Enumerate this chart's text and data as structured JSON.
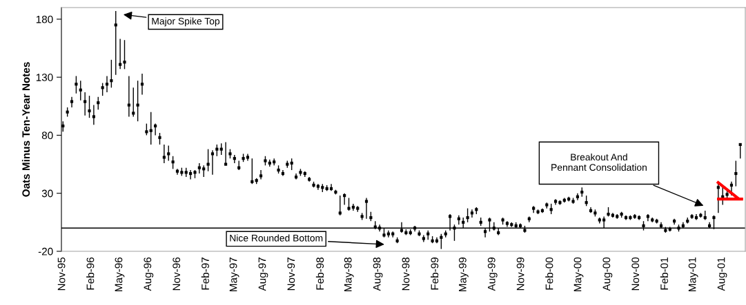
{
  "chart_data": {
    "type": "scatter",
    "ylabel": "Oats Minus Ten-Year Notes",
    "xlim": [
      "1995-10-29",
      "2001-10-14"
    ],
    "ylim": [
      -20,
      190
    ],
    "yticks": [
      -20,
      30,
      80,
      130,
      180
    ],
    "xticks": [
      {
        "value": "1995-11-01",
        "label": "Nov-95"
      },
      {
        "value": "1996-02-01",
        "label": "Feb-96"
      },
      {
        "value": "1996-05-01",
        "label": "May-96"
      },
      {
        "value": "1996-08-01",
        "label": "Aug-96"
      },
      {
        "value": "1996-11-01",
        "label": "Nov-96"
      },
      {
        "value": "1997-02-01",
        "label": "Feb-97"
      },
      {
        "value": "1997-05-01",
        "label": "May-97"
      },
      {
        "value": "1997-08-01",
        "label": "Aug-97"
      },
      {
        "value": "1997-11-01",
        "label": "Nov-97"
      },
      {
        "value": "1998-02-01",
        "label": "Feb-98"
      },
      {
        "value": "1998-05-01",
        "label": "May-98"
      },
      {
        "value": "1998-08-01",
        "label": "Aug-98"
      },
      {
        "value": "1998-11-01",
        "label": "Nov-98"
      },
      {
        "value": "1999-02-01",
        "label": "Feb-99"
      },
      {
        "value": "1999-05-01",
        "label": "May-99"
      },
      {
        "value": "1999-08-01",
        "label": "Aug-99"
      },
      {
        "value": "1999-11-01",
        "label": "Nov-99"
      },
      {
        "value": "2000-02-01",
        "label": "Feb-00"
      },
      {
        "value": "2000-05-01",
        "label": "May-00"
      },
      {
        "value": "2000-08-01",
        "label": "Aug-00"
      },
      {
        "value": "2000-11-01",
        "label": "Nov-00"
      },
      {
        "value": "2001-02-01",
        "label": "Feb-01"
      },
      {
        "value": "2001-05-01",
        "label": "May-01"
      },
      {
        "value": "2001-08-01",
        "label": "Aug-01"
      }
    ],
    "grid": false,
    "legend": false,
    "ref_lines": [
      {
        "axis": "y",
        "value": 0,
        "color": "#000000"
      }
    ],
    "annotations": [
      "Major Spike Top",
      "Nice Rounded Bottom",
      "Breakout And\nPennant Consolidation"
    ],
    "series": [
      {
        "marker": "square",
        "color": "#000000",
        "x": [
          "1995-11-03",
          "1995-11-17",
          "1995-12-01",
          "1995-12-15",
          "1995-12-29",
          "1996-01-12",
          "1996-01-26",
          "1996-02-09",
          "1996-02-23",
          "1996-03-08",
          "1996-03-22",
          "1996-04-05",
          "1996-04-19",
          "1996-05-03",
          "1996-05-17",
          "1996-05-31",
          "1996-06-14",
          "1996-06-28",
          "1996-07-12",
          "1996-07-26",
          "1996-08-09",
          "1996-08-23",
          "1996-09-06",
          "1996-09-20",
          "1996-10-04",
          "1996-10-18",
          "1996-11-01",
          "1996-11-15",
          "1996-11-29",
          "1996-12-13",
          "1996-12-27",
          "1997-01-10",
          "1997-01-24",
          "1997-02-07",
          "1997-02-21",
          "1997-03-07",
          "1997-03-21",
          "1997-04-04",
          "1997-04-18",
          "1997-05-02",
          "1997-05-16",
          "1997-05-30",
          "1997-06-13",
          "1997-06-27",
          "1997-07-11",
          "1997-07-25",
          "1997-08-08",
          "1997-08-22",
          "1997-09-05",
          "1997-09-19",
          "1997-10-03",
          "1997-10-17",
          "1997-10-31",
          "1997-11-14",
          "1997-11-28",
          "1997-12-12",
          "1997-12-26",
          "1998-01-09",
          "1998-01-23",
          "1998-02-06",
          "1998-02-20",
          "1998-03-06",
          "1998-03-20",
          "1998-04-03",
          "1998-04-17",
          "1998-05-01",
          "1998-05-15",
          "1998-05-29",
          "1998-06-12",
          "1998-06-26",
          "1998-07-10",
          "1998-07-24",
          "1998-08-07",
          "1998-08-21",
          "1998-09-04",
          "1998-09-18",
          "1998-10-02",
          "1998-10-16",
          "1998-10-30",
          "1998-11-13",
          "1998-11-27",
          "1998-12-11",
          "1998-12-25",
          "1999-01-08",
          "1999-01-22",
          "1999-02-05",
          "1999-02-19",
          "1999-03-05",
          "1999-03-19",
          "1999-04-02",
          "1999-04-16",
          "1999-04-30",
          "1999-05-14",
          "1999-05-28",
          "1999-06-11",
          "1999-06-25",
          "1999-07-09",
          "1999-07-23",
          "1999-08-06",
          "1999-08-20",
          "1999-09-03",
          "1999-09-17",
          "1999-10-01",
          "1999-10-15",
          "1999-10-29",
          "1999-11-12",
          "1999-11-26",
          "1999-12-10",
          "1999-12-24",
          "2000-01-07",
          "2000-01-21",
          "2000-02-04",
          "2000-02-18",
          "2000-03-03",
          "2000-03-17",
          "2000-03-31",
          "2000-04-14",
          "2000-04-28",
          "2000-05-12",
          "2000-05-26",
          "2000-06-09",
          "2000-06-23",
          "2000-07-07",
          "2000-07-21",
          "2000-08-04",
          "2000-08-18",
          "2000-09-01",
          "2000-09-15",
          "2000-09-29",
          "2000-10-13",
          "2000-10-27",
          "2000-11-10",
          "2000-11-24",
          "2000-12-08",
          "2000-12-22",
          "2001-01-05",
          "2001-01-19",
          "2001-02-02",
          "2001-02-16",
          "2001-03-02",
          "2001-03-16",
          "2001-03-30",
          "2001-04-13",
          "2001-04-27",
          "2001-05-11",
          "2001-05-25",
          "2001-06-08",
          "2001-06-22",
          "2001-07-06",
          "2001-07-20",
          "2001-08-03",
          "2001-08-17",
          "2001-08-31",
          "2001-09-14",
          "2001-09-28"
        ],
        "values": [
          88,
          100,
          109,
          124,
          119,
          109,
          101,
          96,
          108,
          121,
          124,
          127,
          175,
          141,
          143,
          106,
          99,
          106,
          124,
          83,
          84,
          88,
          78,
          61,
          64,
          57,
          49,
          48,
          48,
          47,
          48,
          52,
          51,
          55,
          64,
          68,
          68,
          55,
          64,
          60,
          52,
          60,
          61,
          40,
          41,
          45,
          58,
          56,
          57,
          50,
          47,
          55,
          56,
          44,
          48,
          47,
          42,
          37,
          36,
          35,
          34,
          34,
          31,
          13,
          28,
          17,
          18,
          17,
          10,
          23,
          9,
          1,
          0,
          -6,
          -5,
          -5,
          -11,
          -2,
          -4,
          -4,
          0,
          -5,
          -9,
          -5,
          -11,
          -11,
          -8,
          -5,
          10,
          0,
          8,
          5,
          9,
          13,
          16,
          5,
          -3,
          7,
          0,
          -4,
          7,
          4,
          3,
          2,
          2,
          -2,
          8,
          17,
          14,
          15,
          20,
          16,
          23,
          22,
          24,
          25,
          23,
          27,
          31,
          22,
          15,
          13,
          7,
          7,
          12,
          11,
          10,
          12,
          9,
          9,
          10,
          9,
          2,
          10,
          7,
          6,
          2,
          -2,
          -1,
          6,
          0,
          2,
          6,
          10,
          9,
          11,
          9,
          2,
          9,
          35,
          27,
          29,
          37,
          47,
          72
        ],
        "errors": [
          [
            83,
            92
          ],
          [
            96,
            104
          ],
          [
            104,
            113
          ],
          [
            116,
            131
          ],
          [
            110,
            127
          ],
          [
            97,
            117
          ],
          [
            95,
            114
          ],
          [
            89,
            106
          ],
          [
            102,
            113
          ],
          [
            114,
            125
          ],
          [
            117,
            131
          ],
          [
            121,
            145
          ],
          [
            132,
            187
          ],
          [
            137,
            163
          ],
          [
            137,
            162
          ],
          [
            96,
            131
          ],
          [
            96,
            121
          ],
          [
            92,
            127
          ],
          [
            115,
            133
          ],
          [
            80,
            90
          ],
          [
            72,
            100
          ],
          [
            80,
            90
          ],
          [
            72,
            82
          ],
          [
            56,
            72
          ],
          [
            58,
            71
          ],
          [
            51,
            62
          ],
          [
            46,
            51
          ],
          [
            45,
            52
          ],
          [
            44,
            52
          ],
          [
            42,
            50
          ],
          [
            43,
            50
          ],
          [
            47,
            56
          ],
          [
            44,
            54
          ],
          [
            49,
            68
          ],
          [
            46,
            67
          ],
          [
            62,
            72
          ],
          [
            63,
            73
          ],
          [
            54,
            74
          ],
          [
            60,
            68
          ],
          [
            56,
            63
          ],
          [
            50,
            58
          ],
          [
            57,
            64
          ],
          [
            58,
            64
          ],
          [
            38,
            60
          ],
          [
            38,
            43
          ],
          [
            42,
            50
          ],
          [
            54,
            62
          ],
          [
            53,
            59
          ],
          [
            54,
            60
          ],
          [
            47,
            54
          ],
          [
            45,
            50
          ],
          [
            52,
            58
          ],
          [
            50,
            60
          ],
          [
            42,
            47
          ],
          [
            45,
            51
          ],
          [
            44,
            49
          ],
          [
            40,
            44
          ],
          [
            35,
            40
          ],
          [
            33,
            38
          ],
          [
            31,
            38
          ],
          [
            32,
            37
          ],
          [
            32,
            38
          ],
          [
            29,
            33
          ],
          [
            11,
            28
          ],
          [
            20,
            30
          ],
          [
            15,
            26
          ],
          [
            15,
            21
          ],
          [
            14,
            19
          ],
          [
            7,
            13
          ],
          [
            8,
            26
          ],
          [
            6,
            14
          ],
          [
            -1,
            6
          ],
          [
            -3,
            3
          ],
          [
            -8,
            0
          ],
          [
            -8,
            -2
          ],
          [
            -8,
            -3
          ],
          [
            -13,
            -8
          ],
          [
            -4,
            5
          ],
          [
            -6,
            -1
          ],
          [
            -6,
            -1
          ],
          [
            -3,
            2
          ],
          [
            -7,
            -2
          ],
          [
            -12,
            -6
          ],
          [
            -10,
            -2
          ],
          [
            -13,
            -7
          ],
          [
            -13,
            -8
          ],
          [
            -18,
            -5
          ],
          [
            -8,
            -2
          ],
          [
            -2,
            12
          ],
          [
            -11,
            3
          ],
          [
            3,
            11
          ],
          [
            0,
            9
          ],
          [
            5,
            17
          ],
          [
            9,
            16
          ],
          [
            12,
            18
          ],
          [
            2,
            9
          ],
          [
            -8,
            0
          ],
          [
            -3,
            9
          ],
          [
            -2,
            5
          ],
          [
            -6,
            0
          ],
          [
            3,
            9
          ],
          [
            1,
            6
          ],
          [
            1,
            5
          ],
          [
            0,
            5
          ],
          [
            0,
            4
          ],
          [
            -4,
            2
          ],
          [
            5,
            10
          ],
          [
            13,
            19
          ],
          [
            12,
            16
          ],
          [
            13,
            17
          ],
          [
            17,
            22
          ],
          [
            12,
            21
          ],
          [
            20,
            25
          ],
          [
            20,
            24
          ],
          [
            22,
            26
          ],
          [
            23,
            27
          ],
          [
            21,
            26
          ],
          [
            24,
            30
          ],
          [
            27,
            35
          ],
          [
            19,
            28
          ],
          [
            13,
            18
          ],
          [
            10,
            16
          ],
          [
            4,
            9
          ],
          [
            0,
            10
          ],
          [
            10,
            18
          ],
          [
            9,
            13
          ],
          [
            8,
            12
          ],
          [
            9,
            14
          ],
          [
            7,
            11
          ],
          [
            7,
            11
          ],
          [
            8,
            12
          ],
          [
            7,
            11
          ],
          [
            -2,
            6
          ],
          [
            6,
            12
          ],
          [
            5,
            9
          ],
          [
            4,
            8
          ],
          [
            0,
            5
          ],
          [
            -4,
            1
          ],
          [
            -3,
            1
          ],
          [
            3,
            8
          ],
          [
            -3,
            3
          ],
          [
            0,
            5
          ],
          [
            4,
            9
          ],
          [
            8,
            12
          ],
          [
            7,
            12
          ],
          [
            9,
            13
          ],
          [
            7,
            15
          ],
          [
            0,
            5
          ],
          [
            -1,
            11
          ],
          [
            13,
            40
          ],
          [
            20,
            36
          ],
          [
            25,
            32
          ],
          [
            28,
            40
          ],
          [
            36,
            58
          ],
          [
            60,
            72
          ]
        ]
      },
      {
        "type": "line",
        "color": "#ff0000",
        "x": [
          "2001-07-16",
          "2001-09-24"
        ],
        "values": [
          40,
          25
        ]
      },
      {
        "type": "line",
        "color": "#ff0000",
        "x": [
          "2001-07-16",
          "2001-10-07"
        ],
        "values": [
          25,
          25
        ]
      }
    ]
  }
}
